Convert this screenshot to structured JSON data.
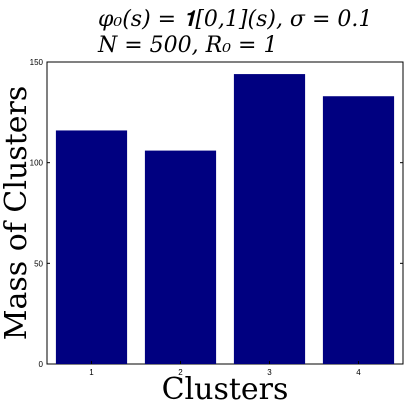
{
  "chart_data": {
    "type": "bar",
    "title_lines": [
      "φ₀(s) = 𝟏[0,1](s), σ = 0.1",
      "N = 500, R₀ = 1"
    ],
    "xlabel": "Clusters",
    "ylabel": "Mass of Clusters",
    "categories": [
      "1",
      "2",
      "3",
      "4"
    ],
    "values": [
      116,
      106,
      144,
      133
    ],
    "ylim": [
      0,
      150
    ],
    "yticks": [
      0,
      50,
      100,
      150
    ],
    "bar_color": "#000080",
    "grid": false,
    "legend": "none"
  }
}
